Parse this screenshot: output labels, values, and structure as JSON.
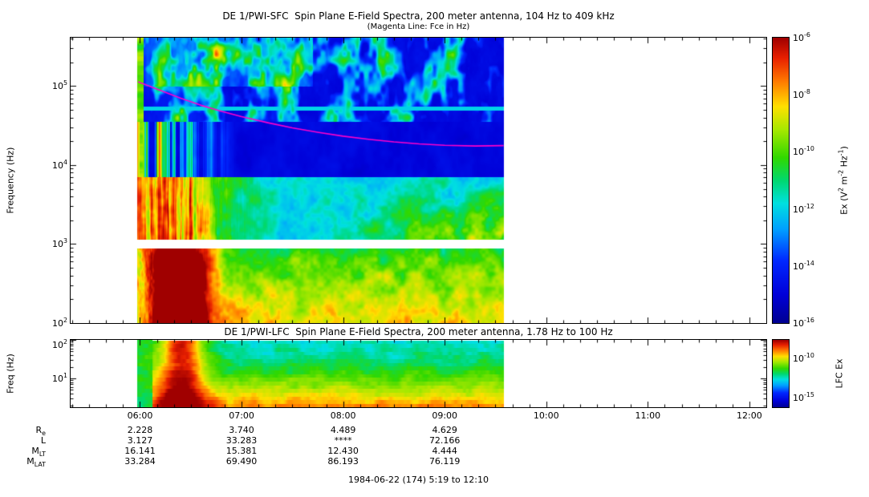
{
  "figure": {
    "sfc": {
      "title": "DE 1/PWI-SFC  Spin Plane E-Field Spectra, 200 meter antenna, 104 Hz to 409 kHz",
      "subtitle": "(Magenta Line: Fce in Hz)",
      "ylabel": "Frequency (Hz)",
      "ytick_exponents": [
        5,
        4,
        3,
        2
      ],
      "colorbar_label_tokens": [
        [
          "t",
          "Ex (V"
        ],
        [
          "sup",
          "2"
        ],
        [
          "t",
          " m"
        ],
        [
          "sup",
          "-2"
        ],
        [
          "t",
          " Hz"
        ],
        [
          "sup",
          "-1"
        ],
        [
          "t",
          ")"
        ]
      ],
      "colorbar_tick_exponents": [
        -6,
        -8,
        -10,
        -12,
        -14,
        -16
      ]
    },
    "lfc": {
      "title": "DE 1/PWI-LFC  Spin Plane E-Field Spectra, 200 meter antenna, 1.78 Hz to 100 Hz",
      "ylabel": "Freq (Hz)",
      "ytick_exponents": [
        2,
        1
      ],
      "colorbar_label": "LFC Ex",
      "colorbar_ticks": [
        {
          "exponent": -10,
          "frac": 0.27
        },
        {
          "exponent": -15,
          "frac": 0.86
        }
      ]
    },
    "time_labels": [
      {
        "label": "06:00",
        "hour": 6
      },
      {
        "label": "07:00",
        "hour": 7
      },
      {
        "label": "08:00",
        "hour": 8
      },
      {
        "label": "09:00",
        "hour": 9
      },
      {
        "label": "10:00",
        "hour": 10
      },
      {
        "label": "11:00",
        "hour": 11
      },
      {
        "label": "12:00",
        "hour": 12
      }
    ],
    "ephemeris": {
      "columns_hours": [
        6,
        7,
        8,
        9
      ],
      "rows": [
        {
          "label_tokens": [
            [
              "t",
              "R"
            ],
            [
              "sub",
              "e"
            ]
          ],
          "values": [
            "2.228",
            "3.740",
            "4.489",
            "4.629"
          ]
        },
        {
          "label_tokens": [
            [
              "t",
              "L"
            ]
          ],
          "values": [
            "3.127",
            "33.283",
            "****",
            "72.166"
          ]
        },
        {
          "label_tokens": [
            [
              "t",
              "M"
            ],
            [
              "sub",
              "LT"
            ]
          ],
          "values": [
            "16.141",
            "15.381",
            "12.430",
            "4.444"
          ]
        },
        {
          "label_tokens": [
            [
              "t",
              "M"
            ],
            [
              "sub",
              "LAT"
            ]
          ],
          "values": [
            "33.284",
            "69.490",
            "86.193",
            "76.119"
          ]
        }
      ]
    },
    "footer": "1984-06-22 (174) 5:19 to 12:10"
  },
  "chart_data": {
    "type": "heatmap",
    "description": "Two dynamic spectrogram panels (DE-1 PWI electric field spectra), frequency (log) vs UT time, color = log spectral power density; magenta overlay on upper panel = electron cyclotron frequency Fce in Hz.",
    "time": {
      "axis_start_hour": 5.3167,
      "axis_end_hour": 12.1667,
      "data_start_hour": 5.97,
      "data_end_hour": 9.58,
      "hour_ticks": [
        6,
        7,
        8,
        9,
        10,
        11,
        12
      ]
    },
    "sfc": {
      "freq_range_hz": [
        100,
        409000
      ],
      "power_colorbar_range": [
        1e-16,
        1e-06
      ],
      "fce_line_hz": {
        "color": "#ff00cc",
        "t_hours": [
          5.98,
          6.2,
          6.4,
          6.6,
          6.8,
          7.0,
          7.25,
          7.5,
          7.75,
          8.0,
          8.25,
          8.5,
          8.75,
          9.0,
          9.3,
          9.58
        ],
        "f_hz": [
          113000,
          88000,
          70000,
          57000,
          48000,
          41000,
          34500,
          29500,
          26000,
          23200,
          21200,
          19600,
          18500,
          17800,
          17400,
          17600
        ]
      },
      "features": {
        "white_data_gap_logf": [
          2.945,
          3.06
        ],
        "mid_band_top_logf": 3.85,
        "quiet_band_top_logf": 4.55,
        "cyan_stripe_logf": 4.72,
        "perigee_burst_hour": 6.38,
        "perigee_burst_sigma": 0.21,
        "lead_edge_hour": 6.03
      }
    },
    "lfc": {
      "freq_range_hz": [
        1.78,
        100
      ],
      "power_colorbar_range": [
        1e-16,
        1e-08
      ],
      "features": {
        "perigee_burst_hour": 6.4,
        "perigee_burst_sigma": 0.17,
        "channels": 18
      }
    },
    "colormap": [
      {
        "v": 0.0,
        "c": "#000090"
      },
      {
        "v": 0.1,
        "c": "#0000d8"
      },
      {
        "v": 0.22,
        "c": "#0028ff"
      },
      {
        "v": 0.33,
        "c": "#00a0ff"
      },
      {
        "v": 0.42,
        "c": "#00e0e0"
      },
      {
        "v": 0.5,
        "c": "#00d870"
      },
      {
        "v": 0.58,
        "c": "#30d800"
      },
      {
        "v": 0.68,
        "c": "#a8e800"
      },
      {
        "v": 0.76,
        "c": "#ffe000"
      },
      {
        "v": 0.85,
        "c": "#ff7800"
      },
      {
        "v": 0.93,
        "c": "#e82000"
      },
      {
        "v": 1.0,
        "c": "#a00000"
      }
    ]
  }
}
